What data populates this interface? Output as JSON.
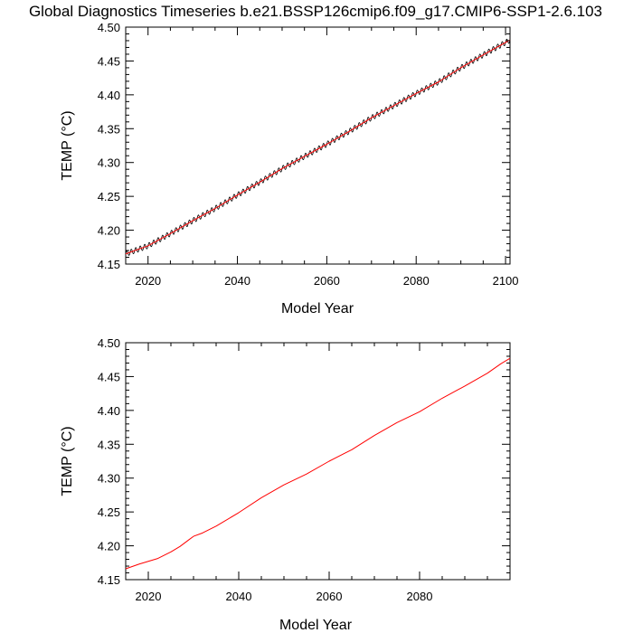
{
  "title": "Global Diagnostics Timeseries b.e21.BSSP126cmip6.f09_g17.CMIP6-SSP1-2.6.103",
  "colors": {
    "monthly": "#000000",
    "annual": "#ff0000",
    "axis": "#000000",
    "background": "#ffffff"
  },
  "chart_data": [
    {
      "type": "line",
      "xlabel": "Model Year",
      "ylabel": "TEMP (°C)",
      "xlim": [
        2015,
        2101
      ],
      "ylim": [
        4.15,
        4.5
      ],
      "x_ticks": [
        2020,
        2040,
        2060,
        2080,
        2100
      ],
      "x_tick_labels": [
        "2020",
        "2040",
        "2060",
        "2080",
        "2100"
      ],
      "y_ticks": [
        4.15,
        4.2,
        4.25,
        4.3,
        4.35,
        4.4,
        4.45,
        4.5
      ],
      "y_tick_labels": [
        "4.15",
        "4.20",
        "4.25",
        "4.30",
        "4.35",
        "4.40",
        "4.45",
        "4.50"
      ],
      "grid": false,
      "series": [
        {
          "role": "monthly",
          "color": "#000000",
          "seasonal_amplitude": 0.004,
          "x": [
            2015,
            2020,
            2025,
            2030,
            2035,
            2040,
            2045,
            2050,
            2055,
            2060,
            2065,
            2070,
            2075,
            2080,
            2085,
            2090,
            2095,
            2101
          ],
          "y": [
            4.165,
            4.177,
            4.195,
            4.214,
            4.232,
            4.252,
            4.271,
            4.291,
            4.309,
            4.327,
            4.346,
            4.366,
            4.384,
            4.402,
            4.419,
            4.44,
            4.459,
            4.481
          ]
        },
        {
          "role": "annual",
          "color": "#ff0000",
          "x": [
            2015,
            2020,
            2025,
            2030,
            2035,
            2040,
            2045,
            2050,
            2055,
            2060,
            2065,
            2070,
            2075,
            2080,
            2085,
            2090,
            2095,
            2101
          ],
          "y": [
            4.165,
            4.177,
            4.195,
            4.214,
            4.232,
            4.252,
            4.271,
            4.291,
            4.309,
            4.327,
            4.346,
            4.366,
            4.384,
            4.402,
            4.419,
            4.44,
            4.459,
            4.481
          ]
        }
      ]
    },
    {
      "type": "line",
      "xlabel": "Model Year",
      "ylabel": "TEMP (°C)",
      "xlim": [
        2015,
        2100
      ],
      "ylim": [
        4.15,
        4.5
      ],
      "x_ticks": [
        2020,
        2040,
        2060,
        2080
      ],
      "x_tick_labels": [
        "2020",
        "2040",
        "2060",
        "2080"
      ],
      "y_ticks": [
        4.15,
        4.2,
        4.25,
        4.3,
        4.35,
        4.4,
        4.45,
        4.5
      ],
      "y_tick_labels": [
        "4.15",
        "4.20",
        "4.25",
        "4.30",
        "4.35",
        "4.40",
        "4.45",
        "4.50"
      ],
      "grid": false,
      "series": [
        {
          "role": "annual",
          "color": "#ff0000",
          "x": [
            2015,
            2018,
            2020,
            2022,
            2025,
            2027,
            2029,
            2030,
            2032,
            2035,
            2040,
            2045,
            2050,
            2055,
            2060,
            2065,
            2070,
            2075,
            2080,
            2085,
            2090,
            2095,
            2098,
            2100
          ],
          "y": [
            4.166,
            4.173,
            4.177,
            4.181,
            4.191,
            4.199,
            4.209,
            4.214,
            4.219,
            4.229,
            4.249,
            4.271,
            4.29,
            4.306,
            4.325,
            4.342,
            4.363,
            4.382,
            4.398,
            4.418,
            4.436,
            4.455,
            4.469,
            4.477
          ]
        }
      ]
    }
  ]
}
